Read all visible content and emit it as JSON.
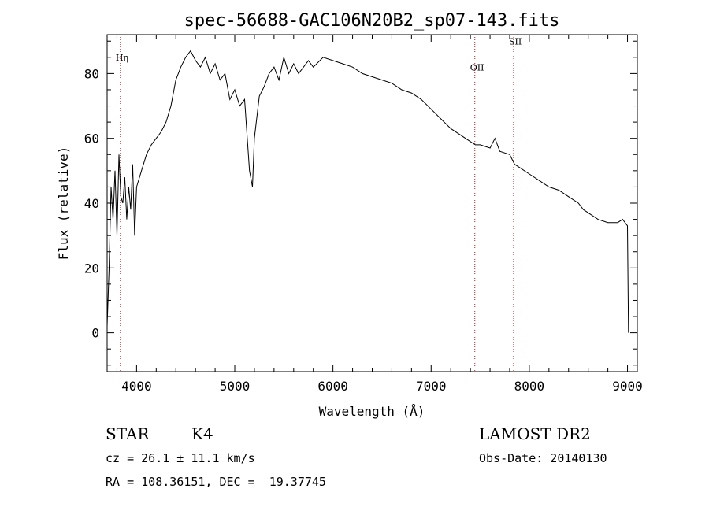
{
  "chart_data": {
    "type": "line",
    "title": "spec-56688-GAC106N20B2_sp07-143.fits",
    "xlabel": "Wavelength (Å)",
    "ylabel": "Flux (relative)",
    "xlim": [
      3700,
      9100
    ],
    "ylim": [
      -12,
      92
    ],
    "xticks": [
      4000,
      5000,
      6000,
      7000,
      8000,
      9000
    ],
    "yticks": [
      0,
      20,
      40,
      60,
      80
    ],
    "line_color": "#000000",
    "marker_color": "#b22222",
    "lines": [
      {
        "label": "Hη",
        "wavelength": 3835,
        "label_y": 84
      },
      {
        "label": "OII",
        "wavelength": 7445,
        "label_y": 81
      },
      {
        "label": "SII",
        "wavelength": 7840,
        "label_y": 89
      }
    ],
    "series": [
      {
        "x": [
          3700,
          3720,
          3740,
          3760,
          3780,
          3800,
          3820,
          3840,
          3860,
          3880,
          3900,
          3920,
          3940,
          3960,
          3980,
          4000,
          4050,
          4100,
          4150,
          4200,
          4250,
          4300,
          4350,
          4400,
          4450,
          4500,
          4550,
          4600,
          4650,
          4700,
          4750,
          4800,
          4850,
          4900,
          4950,
          5000,
          5050,
          5100,
          5150,
          5180,
          5200,
          5250,
          5300,
          5350,
          5400,
          5450,
          5500,
          5550,
          5600,
          5650,
          5700,
          5750,
          5800,
          5900,
          6000,
          6100,
          6200,
          6300,
          6400,
          6500,
          6600,
          6700,
          6800,
          6900,
          7000,
          7100,
          7200,
          7300,
          7400,
          7450,
          7500,
          7600,
          7650,
          7700,
          7800,
          7850,
          7900,
          8000,
          8100,
          8200,
          8300,
          8400,
          8500,
          8550,
          8600,
          8700,
          8800,
          8900,
          8950,
          9000,
          9010
        ],
        "y": [
          2,
          20,
          45,
          35,
          50,
          30,
          55,
          42,
          40,
          48,
          35,
          45,
          38,
          52,
          30,
          45,
          50,
          55,
          58,
          60,
          62,
          65,
          70,
          78,
          82,
          85,
          87,
          84,
          82,
          85,
          80,
          83,
          78,
          80,
          72,
          75,
          70,
          72,
          50,
          45,
          60,
          73,
          76,
          80,
          82,
          78,
          85,
          80,
          83,
          80,
          82,
          84,
          82,
          85,
          84,
          83,
          82,
          80,
          79,
          78,
          77,
          75,
          74,
          72,
          69,
          66,
          63,
          61,
          59,
          58,
          58,
          57,
          60,
          56,
          55,
          52,
          51,
          49,
          47,
          45,
          44,
          42,
          40,
          38,
          37,
          35,
          34,
          34,
          35,
          33,
          0
        ]
      }
    ]
  },
  "info": {
    "class_label": "STAR",
    "subclass": "K4",
    "survey": "LAMOST DR2",
    "cz": "cz = 26.1 ± 11.1 km/s",
    "obs_date": "Obs-Date: 20140130",
    "radec": "RA = 108.36151, DEC =  19.37745"
  }
}
